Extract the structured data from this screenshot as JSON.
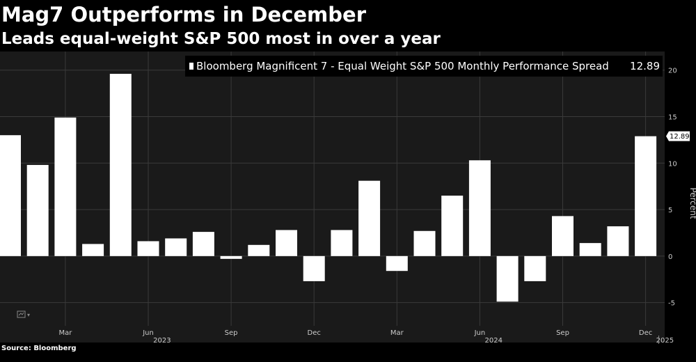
{
  "header": {
    "title": "Mag7 Outperforms in December",
    "subtitle": "Leads equal-weight S&P 500 most in over a year"
  },
  "footer": {
    "source": "Source: Bloomberg"
  },
  "colors": {
    "background": "#000000",
    "plot_bg": "#1a1a1a",
    "bar": "#ffffff",
    "grid": "#3a3a3a"
  },
  "chart_data": {
    "type": "bar",
    "title": "Mag7 Outperforms in December",
    "subtitle": "Leads equal-weight S&P 500 most in over a year",
    "legend": "Bloomberg Magnificent 7 - Equal Weight S&P 500 Monthly Performance Spread",
    "legend_value": "12.89",
    "last_value_label": "12.89",
    "ylabel": "Percent",
    "ylim": [
      -7.5,
      22
    ],
    "y_ticks": [
      -5,
      0,
      5,
      10,
      15,
      20
    ],
    "categories": [
      "Jan 2023",
      "Feb 2023",
      "Mar 2023",
      "Apr 2023",
      "May 2023",
      "Jun 2023",
      "Jul 2023",
      "Aug 2023",
      "Sep 2023",
      "Oct 2023",
      "Nov 2023",
      "Dec 2023",
      "Jan 2024",
      "Feb 2024",
      "Mar 2024",
      "Apr 2024",
      "May 2024",
      "Jun 2024",
      "Jul 2024",
      "Aug 2024",
      "Sep 2024",
      "Oct 2024",
      "Nov 2024",
      "Dec 2024"
    ],
    "values": [
      13,
      9.8,
      14.9,
      1.3,
      19.6,
      1.6,
      1.9,
      2.6,
      -0.3,
      1.2,
      2.8,
      -2.7,
      2.8,
      8.1,
      -1.6,
      2.7,
      6.5,
      10.3,
      -4.9,
      -2.7,
      4.3,
      1.4,
      3.2,
      12.89
    ],
    "x_ticks": [
      {
        "label": "Mar",
        "index": 2
      },
      {
        "label": "Jun",
        "index": 5
      },
      {
        "label": "Sep",
        "index": 8
      },
      {
        "label": "Dec",
        "index": 11
      },
      {
        "label": "Mar",
        "index": 14
      },
      {
        "label": "Jun",
        "index": 17
      },
      {
        "label": "Sep",
        "index": 20
      },
      {
        "label": "Dec",
        "index": 23
      }
    ],
    "x_year_labels": [
      {
        "label": "2023",
        "index": 5.5
      },
      {
        "label": "2024",
        "index": 17.5
      },
      {
        "label": "2025",
        "index": 23.7
      }
    ]
  }
}
